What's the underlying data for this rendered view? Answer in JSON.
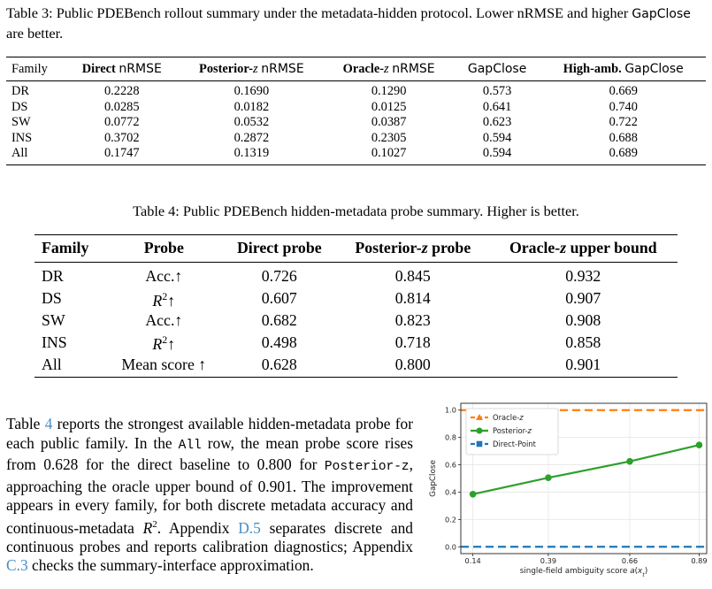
{
  "table3": {
    "caption": {
      "p1": "Table 3: Public PDEBench rollout summary under the metadata-hidden protocol. Lower nRMSE and higher ",
      "gapclose": "GapClose",
      "p2": " are better."
    },
    "headers": {
      "family": "Family",
      "direct_b": "Direct",
      "posterior_b": "Posterior-",
      "oracle_b": "Oracle-",
      "z": "z",
      "nrmse": "nRMSE",
      "gapclose": "GapClose",
      "highamb_b": "High-amb."
    },
    "rows": [
      [
        "DR",
        "0.2228",
        "0.1690",
        "0.1290",
        "0.573",
        "0.669"
      ],
      [
        "DS",
        "0.0285",
        "0.0182",
        "0.0125",
        "0.641",
        "0.740"
      ],
      [
        "SW",
        "0.0772",
        "0.0532",
        "0.0387",
        "0.623",
        "0.722"
      ],
      [
        "INS",
        "0.3702",
        "0.2872",
        "0.2305",
        "0.594",
        "0.688"
      ],
      [
        "All",
        "0.1747",
        "0.1319",
        "0.1027",
        "0.594",
        "0.689"
      ]
    ]
  },
  "table4": {
    "caption": {
      "p1": "Table 4: Public PDEBench hidden-metadata probe summary. Higher is better.",
      "pre": "Table 4: Public PDEBench hidden-metadata probe summary. Higher is better."
    },
    "headers": {
      "family": "Family",
      "probe": "Probe",
      "direct": "Direct probe",
      "posterior_pre": "Posterior-",
      "posterior_post": " probe",
      "oracle_pre": "Oracle-",
      "oracle_post": " upper bound",
      "z": "z"
    },
    "rows": [
      {
        "family": "DR",
        "probe_pre": "Acc.",
        "probe_sup": "",
        "arrow": "↑",
        "direct": "0.726",
        "posterior": "0.845",
        "oracle": "0.932"
      },
      {
        "family": "DS",
        "probe_pre": "R",
        "probe_sup": "2",
        "arrow": "↑",
        "direct": "0.607",
        "posterior": "0.814",
        "oracle": "0.907"
      },
      {
        "family": "SW",
        "probe_pre": "Acc.",
        "probe_sup": "",
        "arrow": "↑",
        "direct": "0.682",
        "posterior": "0.823",
        "oracle": "0.908"
      },
      {
        "family": "INS",
        "probe_pre": "R",
        "probe_sup": "2",
        "arrow": "↑",
        "direct": "0.498",
        "posterior": "0.718",
        "oracle": "0.858"
      },
      {
        "family": "All",
        "probe_pre": "Mean score ",
        "probe_sup": "",
        "arrow": "↑",
        "direct": "0.628",
        "posterior": "0.800",
        "oracle": "0.901"
      }
    ]
  },
  "paragraph": {
    "s1": "Table ",
    "ref_table": "4",
    "s2": " reports the strongest available hidden-metadata probe for each public family. In the ",
    "mono_all": "All",
    "s3": " row, the mean probe score rises from 0.628 for the direct baseline to 0.800 for ",
    "mono_post": "Posterior-z",
    "s4": ", approaching the oracle upper bound of 0.901. The improvement appears in every family, for both discrete metadata accuracy and continuous-metadata ",
    "r": "R",
    "sup2": "2",
    "s5": ". Appendix ",
    "ref_d5": "D.5",
    "s6": " separates discrete and continuous probes and reports calibration diagnostics; Appendix ",
    "ref_c3": "C.3",
    "s7": " checks the summary-interface approximation."
  },
  "chart_data": {
    "type": "line",
    "title": "",
    "xlabel": "single-field ambiguity score a(x_t)",
    "xlabel_parts": {
      "pre": "single-field ambiguity score ",
      "a": "a",
      "paren_open": "(",
      "x": "x",
      "sub": "t",
      "paren_close": ")"
    },
    "ylabel": "GapClose",
    "x": [
      0.14,
      0.39,
      0.66,
      0.89
    ],
    "x_ticks": [
      "0.14",
      "0.39",
      "0.66",
      "0.89"
    ],
    "y_ticks": [
      "0.0",
      "0.2",
      "0.4",
      "0.6",
      "0.8",
      "1.0"
    ],
    "ylim": [
      -0.05,
      1.05
    ],
    "grid": true,
    "legend_position": "top-left",
    "series": [
      {
        "name": "Oracle-z",
        "name_pre": "Oracle-",
        "name_z": "z",
        "values": [
          1.0,
          1.0,
          1.0,
          1.0
        ],
        "color": "#ff7f0e",
        "style": "dashed",
        "marker": "triangle"
      },
      {
        "name": "Posterior-z",
        "name_pre": "Posterior-",
        "name_z": "z",
        "values": [
          0.385,
          0.505,
          0.625,
          0.745
        ],
        "color": "#2ca02c",
        "style": "solid",
        "marker": "circle"
      },
      {
        "name": "Direct-Point",
        "name_pre": "Direct-Point",
        "name_z": "",
        "values": [
          0.0,
          0.0,
          0.0,
          0.0
        ],
        "color": "#1f77b4",
        "style": "dashed",
        "marker": "square"
      }
    ]
  }
}
